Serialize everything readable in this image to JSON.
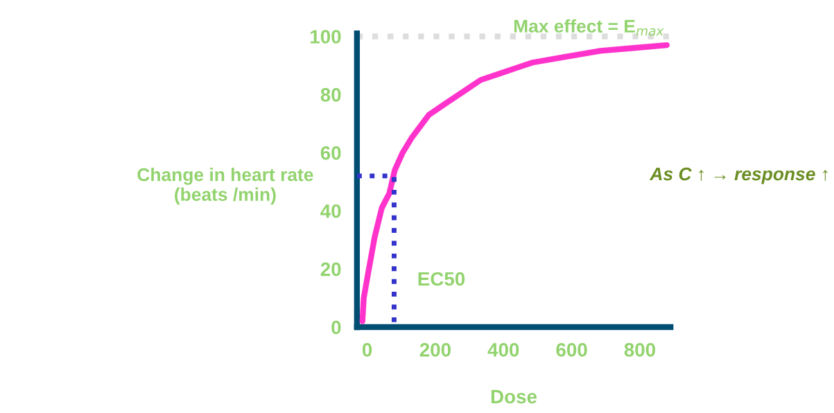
{
  "chart_data": {
    "type": "line",
    "xlabel": "Dose",
    "ylabel": "Change in heart rate\n(beats /min)",
    "series": [
      {
        "color": "#ff33cc",
        "x": [
          -14,
          -10,
          2,
          22,
          43,
          65,
          81,
          104,
          130,
          181,
          231,
          282,
          333,
          384,
          434,
          485,
          583,
          684,
          782,
          879
        ],
        "values": [
          2,
          10,
          18,
          31,
          41,
          46,
          54,
          60,
          65,
          73,
          77,
          81,
          85,
          87,
          89,
          91,
          93,
          95,
          96,
          97
        ]
      },
      {
        "color": "#3333cc",
        "line_style": "dotted",
        "x": [
          -30,
          79,
          79
        ],
        "values": [
          52,
          52,
          0
        ]
      }
    ],
    "xlim": [
      -30,
      890
    ],
    "ylim": [
      0,
      101
    ],
    "xticks": [
      0,
      200,
      400,
      600,
      800
    ],
    "yticks": [
      0,
      20,
      40,
      60,
      80,
      100
    ],
    "grid": false,
    "marker": "none",
    "line_style": "solid",
    "ref_lines": [
      {
        "axis": "y",
        "value": 100,
        "label": "Max effect = E$_{max}$",
        "color": "#dddddd",
        "line_style": "dotted"
      }
    ],
    "annotations": [
      {
        "text": "EC50",
        "x": 79,
        "y": 16
      },
      "As C ↑ → response ↑"
    ]
  }
}
